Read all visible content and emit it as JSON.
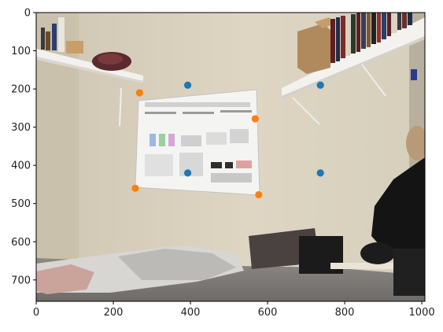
{
  "chart_data": {
    "type": "scatter",
    "background": "photo-of-room-wall-with-poster-and-shelves",
    "xlim": [
      0,
      1008
    ],
    "ylim": [
      756,
      0
    ],
    "grid": false,
    "xticks": [
      0,
      200,
      400,
      600,
      800,
      1000
    ],
    "yticks": [
      0,
      100,
      200,
      300,
      400,
      500,
      600,
      700
    ],
    "series": [
      {
        "color": "#1f77b4",
        "points": [
          {
            "x": 393,
            "y": 190
          },
          {
            "x": 737,
            "y": 190
          },
          {
            "x": 393,
            "y": 420
          },
          {
            "x": 737,
            "y": 420
          }
        ]
      },
      {
        "color": "#ff7f0e",
        "points": [
          {
            "x": 268,
            "y": 210
          },
          {
            "x": 568,
            "y": 278
          },
          {
            "x": 257,
            "y": 460
          },
          {
            "x": 577,
            "y": 477
          }
        ]
      }
    ]
  }
}
